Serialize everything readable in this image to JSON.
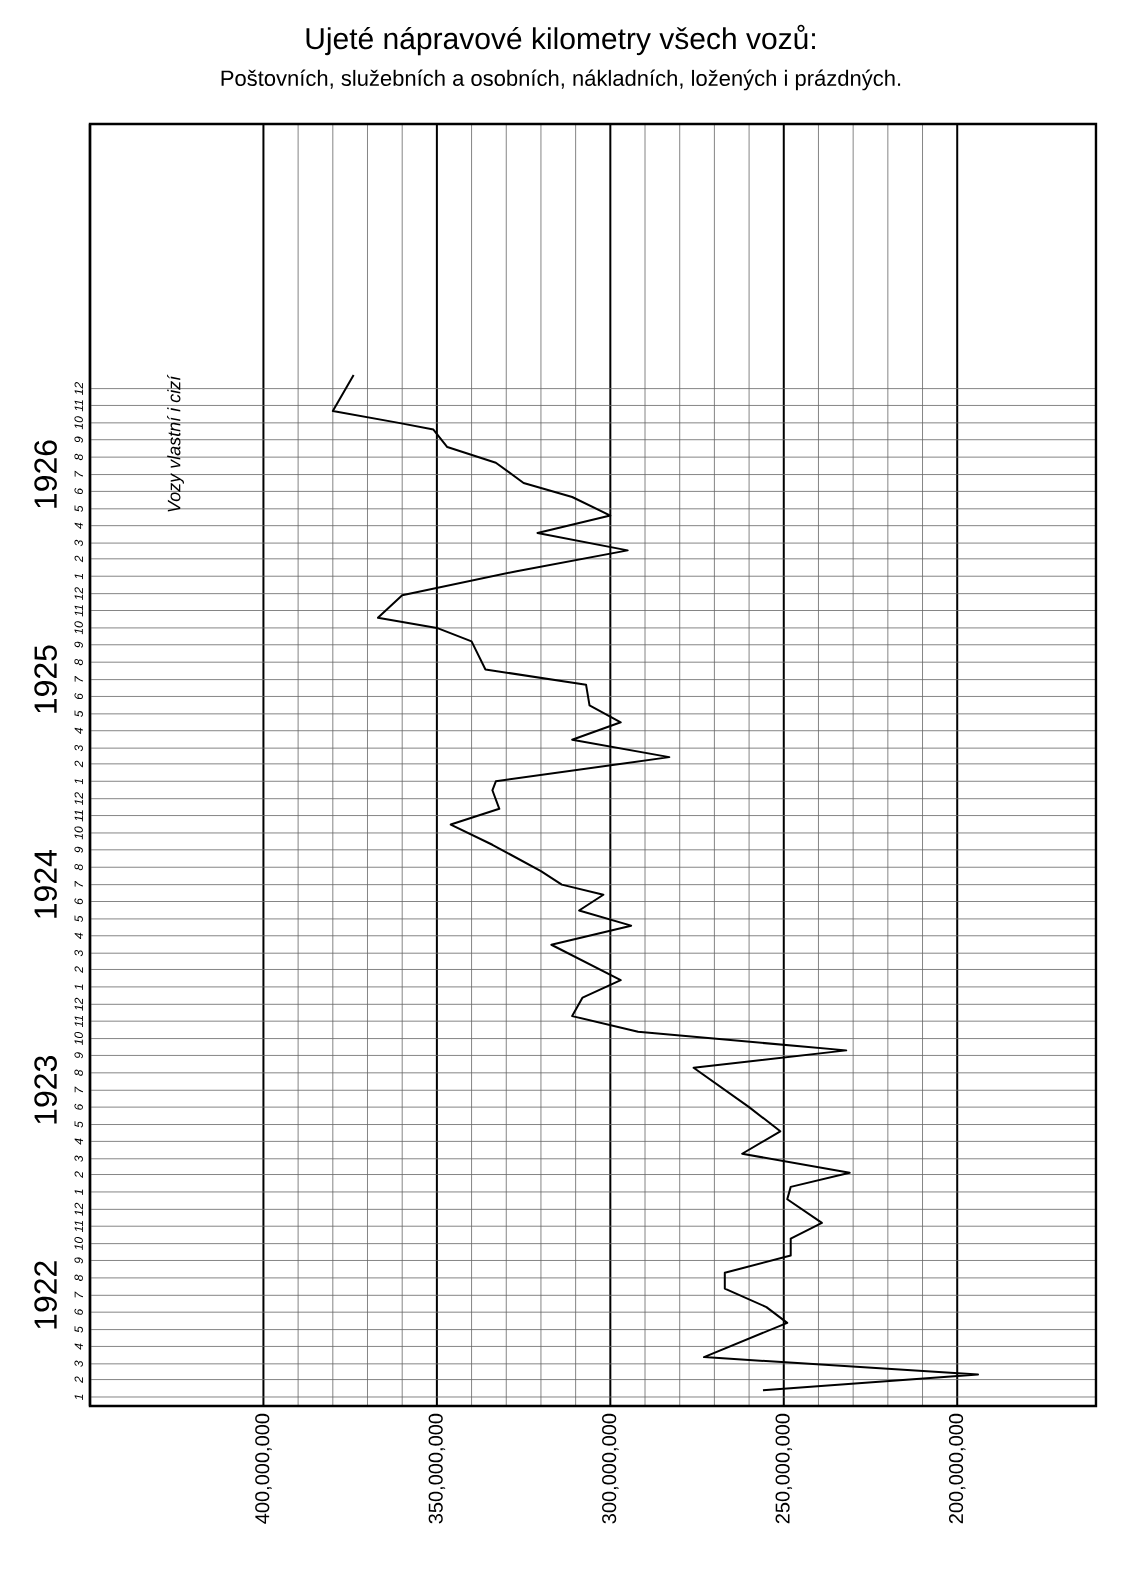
{
  "chart_data": {
    "type": "line",
    "orientation": "horizontal",
    "title": "Ujeté nápravové kilometry všech vozů:",
    "subtitle": "Poštovních, služebních a osobních, nákladních, ložených i prázdných.",
    "annotations": [
      "Vozy vlastní i cizí"
    ],
    "series": [
      {
        "color": "#000000",
        "x": [
          "1922-01-13",
          "1922-02-10",
          "1922-03-13",
          "1922-05-13",
          "1922-06-10",
          "1922-07-13",
          "1922-08-10",
          "1922-09-10",
          "1922-10-10",
          "1922-11-07",
          "1922-12-19",
          "1923-01-10",
          "1923-02-04",
          "1923-03-10",
          "1923-04-19",
          "1923-06-01",
          "1923-08-10",
          "1923-09-10",
          "1923-10-13",
          "1923-11-10",
          "1923-12-13",
          "1924-01-13",
          "1924-03-16",
          "1924-04-19",
          "1924-05-16",
          "1924-06-13",
          "1924-07-01",
          "1924-07-25",
          "1924-09-10",
          "1924-10-16",
          "1924-11-13",
          "1924-12-16",
          "1925-01-01",
          "1925-02-13",
          "1925-03-16",
          "1925-04-16",
          "1925-05-16",
          "1925-06-22",
          "1925-07-19",
          "1925-09-07",
          "1925-10-01",
          "1925-10-19",
          "1925-11-28",
          "1926-01-10",
          "1926-02-16",
          "1926-03-19",
          "1926-04-19",
          "1926-05-22",
          "1926-06-16",
          "1926-07-22",
          "1926-08-19",
          "1926-09-19",
          "1926-10-01",
          "1926-10-22",
          "1926-12-25"
        ],
        "values": [
          256000000,
          194000000,
          273000000,
          249000000,
          255000000,
          267000000,
          267000000,
          248000000,
          248000000,
          239000000,
          249000000,
          248000000,
          231000000,
          262000000,
          251000000,
          260000000,
          276000000,
          232000000,
          292000000,
          311000000,
          308000000,
          297000000,
          317000000,
          294000000,
          309000000,
          302000000,
          314000000,
          320000000,
          334000000,
          346000000,
          332000000,
          334000000,
          333000000,
          283000000,
          311000000,
          297000000,
          306000000,
          307000000,
          336000000,
          340000000,
          350000000,
          367000000,
          360000000,
          327000000,
          295000000,
          321000000,
          300000000,
          311000000,
          325000000,
          333000000,
          347000000,
          351000000,
          361000000,
          380000000,
          374000000
        ]
      }
    ],
    "xlim": [
      450000000,
      160000000
    ],
    "xticks": [
      {
        "value": 400000000,
        "label": "400,000,000"
      },
      {
        "value": 350000000,
        "label": "350,000,000"
      },
      {
        "value": 300000000,
        "label": "300,000,000"
      },
      {
        "value": 250000000,
        "label": "250,000,000"
      },
      {
        "value": 200000000,
        "label": "200,000,000"
      }
    ],
    "ylim": [
      "1921-12-16",
      "1928-03-16"
    ],
    "yticks": [
      {
        "value": "1922-01-01",
        "label": "1"
      },
      {
        "value": "1922-02-01",
        "label": "2"
      },
      {
        "value": "1922-03-01",
        "label": "3"
      },
      {
        "value": "1922-04-01",
        "label": "4"
      },
      {
        "value": "1922-05-01",
        "label": "5"
      },
      {
        "value": "1922-06-01",
        "label": "6"
      },
      {
        "value": "1922-07-01",
        "label": "7"
      },
      {
        "value": "1922-08-01",
        "label": "8"
      },
      {
        "value": "1922-09-01",
        "label": "9"
      },
      {
        "value": "1922-10-01",
        "label": "10"
      },
      {
        "value": "1922-11-01",
        "label": "11"
      },
      {
        "value": "1922-12-01",
        "label": "12"
      },
      {
        "value": "1923-01-01",
        "label": "1"
      },
      {
        "value": "1923-02-01",
        "label": "2"
      },
      {
        "value": "1923-03-01",
        "label": "3"
      },
      {
        "value": "1923-04-01",
        "label": "4"
      },
      {
        "value": "1923-05-01",
        "label": "5"
      },
      {
        "value": "1923-06-01",
        "label": "6"
      },
      {
        "value": "1923-07-01",
        "label": "7"
      },
      {
        "value": "1923-08-01",
        "label": "8"
      },
      {
        "value": "1923-09-01",
        "label": "9"
      },
      {
        "value": "1923-10-01",
        "label": "10"
      },
      {
        "value": "1923-11-01",
        "label": "11"
      },
      {
        "value": "1923-12-01",
        "label": "12"
      },
      {
        "value": "1924-01-01",
        "label": "1"
      },
      {
        "value": "1924-02-01",
        "label": "2"
      },
      {
        "value": "1924-03-01",
        "label": "3"
      },
      {
        "value": "1924-04-01",
        "label": "4"
      },
      {
        "value": "1924-05-01",
        "label": "5"
      },
      {
        "value": "1924-06-01",
        "label": "6"
      },
      {
        "value": "1924-07-01",
        "label": "7"
      },
      {
        "value": "1924-08-01",
        "label": "8"
      },
      {
        "value": "1924-09-01",
        "label": "9"
      },
      {
        "value": "1924-10-01",
        "label": "10"
      },
      {
        "value": "1924-11-01",
        "label": "11"
      },
      {
        "value": "1924-12-01",
        "label": "12"
      },
      {
        "value": "1925-01-01",
        "label": "1"
      },
      {
        "value": "1925-02-01",
        "label": "2"
      },
      {
        "value": "1925-03-01",
        "label": "3"
      },
      {
        "value": "1925-04-01",
        "label": "4"
      },
      {
        "value": "1925-05-01",
        "label": "5"
      },
      {
        "value": "1925-06-01",
        "label": "6"
      },
      {
        "value": "1925-07-01",
        "label": "7"
      },
      {
        "value": "1925-08-01",
        "label": "8"
      },
      {
        "value": "1925-09-01",
        "label": "9"
      },
      {
        "value": "1925-10-01",
        "label": "10"
      },
      {
        "value": "1925-11-01",
        "label": "11"
      },
      {
        "value": "1925-12-01",
        "label": "12"
      },
      {
        "value": "1926-01-01",
        "label": "1"
      },
      {
        "value": "1926-02-01",
        "label": "2"
      },
      {
        "value": "1926-03-01",
        "label": "3"
      },
      {
        "value": "1926-04-01",
        "label": "4"
      },
      {
        "value": "1926-05-01",
        "label": "5"
      },
      {
        "value": "1926-06-01",
        "label": "6"
      },
      {
        "value": "1926-07-01",
        "label": "7"
      },
      {
        "value": "1926-08-01",
        "label": "8"
      },
      {
        "value": "1926-09-01",
        "label": "9"
      },
      {
        "value": "1926-10-01",
        "label": "10"
      },
      {
        "value": "1926-11-01",
        "label": "11"
      },
      {
        "value": "1926-12-01",
        "label": "12"
      }
    ],
    "y2lim": [
      "1921-12-16",
      "1928-03-16"
    ],
    "y2ticks": [
      {
        "value": "1922-07-01",
        "label": "1922"
      },
      {
        "value": "1923-07-01",
        "label": "1923"
      },
      {
        "value": "1924-07-01",
        "label": "1924"
      },
      {
        "value": "1925-07-01",
        "label": "1925"
      },
      {
        "value": "1926-07-01",
        "label": "1926"
      }
    ],
    "grid": true,
    "marker": "none",
    "line_style": "solid"
  }
}
